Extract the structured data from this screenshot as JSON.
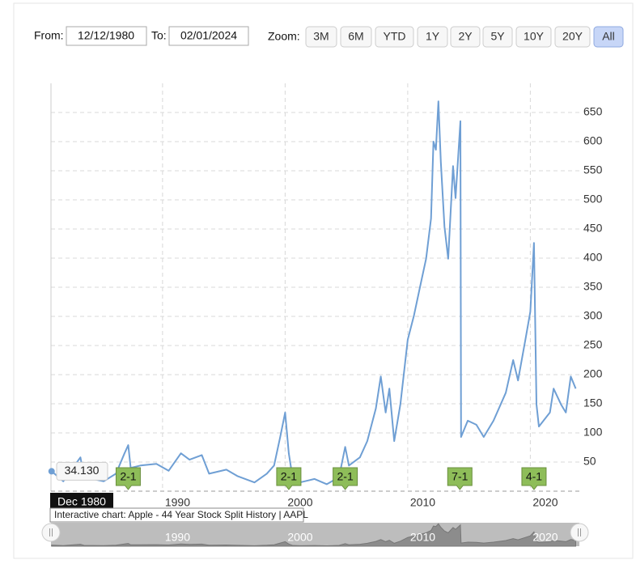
{
  "controls": {
    "from_label": "From:",
    "from": "12/12/1980",
    "to_label": "To:",
    "to": "02/01/2024",
    "zoom_label": "Zoom:",
    "zoom": [
      "3M",
      "6M",
      "YTD",
      "1Y",
      "2Y",
      "5Y",
      "10Y",
      "20Y",
      "All"
    ],
    "selected": "All"
  },
  "chart_data": {
    "type": "line",
    "x": [
      1980.95,
      1981.9,
      1983.3,
      1983.6,
      1985.2,
      1986.2,
      1986.9,
      1987.2,
      1987.4,
      1988.2,
      1989.5,
      1990.5,
      1991.5,
      1992.2,
      1993.2,
      1993.8,
      1995.2,
      1996.1,
      1997.5,
      1998.5,
      1999.1,
      1999.6,
      2000.0,
      2000.3,
      2000.6,
      2001.2,
      2002.4,
      2003.4,
      2004.4,
      2004.9,
      2005.2,
      2006.1,
      2006.7,
      2007.4,
      2007.8,
      2008.2,
      2008.5,
      2008.9,
      2009.4,
      2010.0,
      2010.5,
      2011.0,
      2011.5,
      2011.9,
      2012.1,
      2012.3,
      2012.5,
      2012.7,
      2013.0,
      2013.3,
      2013.7,
      2013.9,
      2014.3,
      2014.35,
      2014.9,
      2015.6,
      2016.2,
      2017.0,
      2018.0,
      2018.6,
      2019.0,
      2019.6,
      2020.0,
      2020.3,
      2020.5,
      2020.7,
      2021.6,
      2021.9,
      2022.5,
      2022.9,
      2023.3,
      2023.7
    ],
    "values": [
      34.13,
      17,
      58,
      24,
      17,
      30,
      65,
      79,
      40,
      44,
      47,
      35,
      65,
      54,
      62,
      30,
      37,
      26,
      15,
      30,
      44,
      93,
      135,
      65,
      24,
      15,
      21,
      12,
      24,
      76,
      44,
      58,
      86,
      142,
      197,
      135,
      176,
      86,
      149,
      260,
      301,
      350,
      399,
      468,
      600,
      586,
      669,
      565,
      454,
      399,
      558,
      503,
      635,
      93,
      121,
      114,
      93,
      121,
      169,
      225,
      190,
      260,
      308,
      426,
      149,
      111,
      135,
      176,
      149,
      135,
      197,
      176
    ],
    "color": "#6f9fd4",
    "xlim": [
      1980.9,
      2024
    ],
    "ylim": [
      0,
      700
    ],
    "xticks": [
      1990,
      2000,
      2010,
      2020
    ],
    "yticks": [
      50,
      100,
      150,
      200,
      250,
      300,
      350,
      400,
      450,
      500,
      550,
      600,
      650
    ],
    "grid": true,
    "flags": [
      {
        "x": 1987.2,
        "label": "2-1"
      },
      {
        "x": 2000.3,
        "label": "2-1"
      },
      {
        "x": 2004.9,
        "label": "2-1"
      },
      {
        "x": 2014.25,
        "label": "7-1"
      },
      {
        "x": 2020.3,
        "label": "4-1"
      }
    ],
    "tooltip": {
      "value": 34.13,
      "label": "34.130",
      "date": "Dec 1980"
    },
    "caption": "Interactive chart: Apple - 44 Year Stock Split History | AAPL"
  }
}
